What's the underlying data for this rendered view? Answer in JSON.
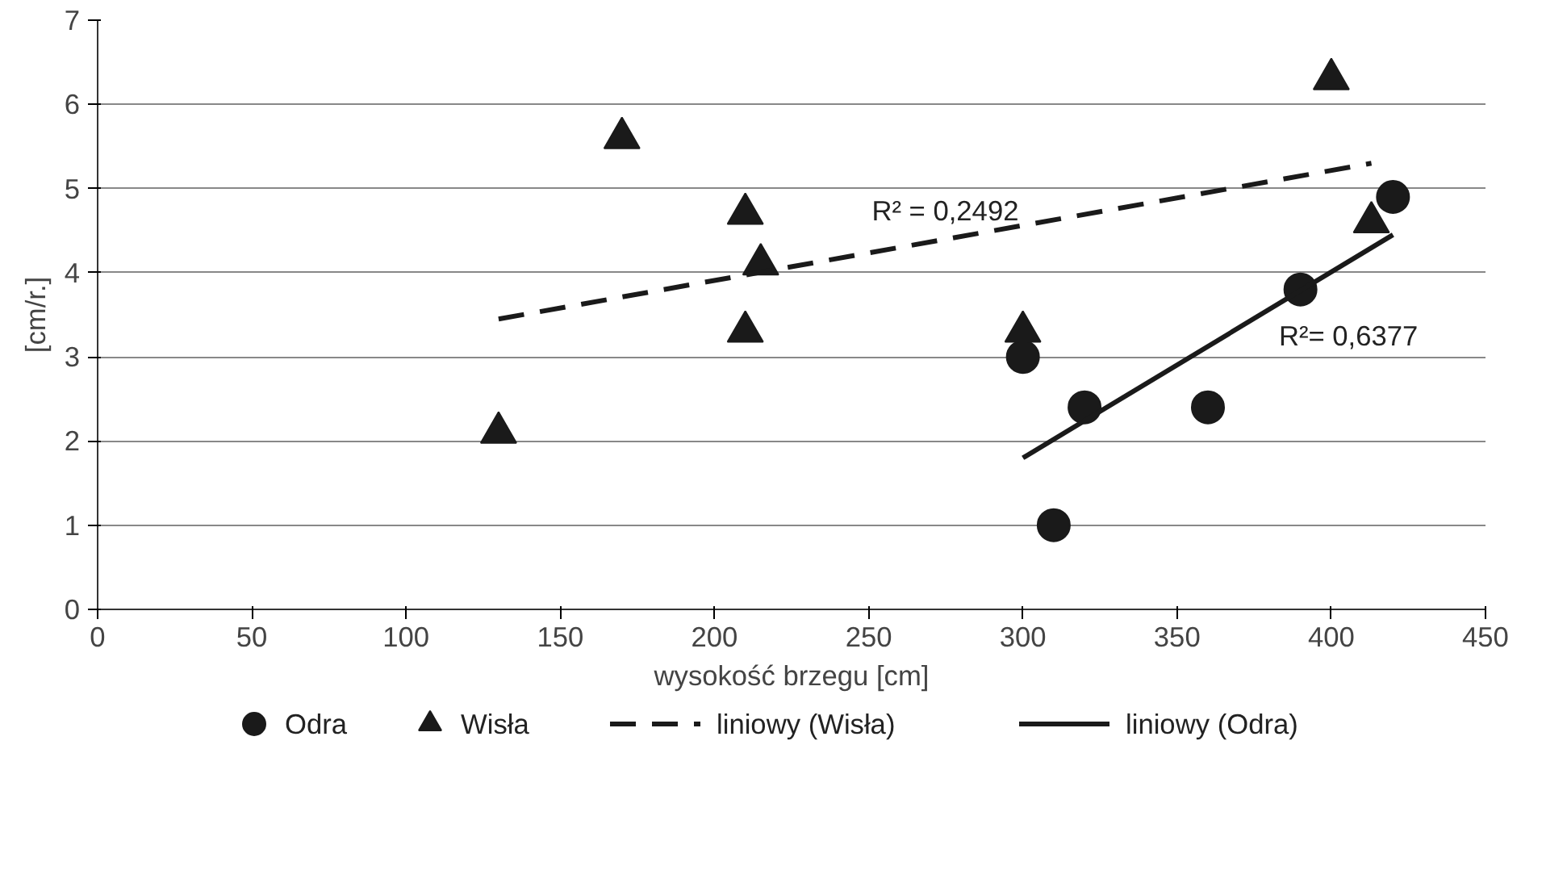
{
  "chart_data": {
    "type": "scatter",
    "xlabel": "wysokość brzegu [cm]",
    "ylabel": "[cm/r.]",
    "xlim": [
      0,
      450
    ],
    "xticks": [
      0,
      50,
      100,
      150,
      200,
      250,
      300,
      350,
      400,
      450
    ],
    "ylim": [
      0,
      7
    ],
    "yticks": [
      0,
      1,
      2,
      3,
      4,
      5,
      6,
      7
    ],
    "grid": "y",
    "legend": "bottom",
    "series": [
      {
        "name": "Odra",
        "color": "#1a1a1a",
        "marker": "circle",
        "x": [
          300,
          310,
          320,
          360,
          390,
          420
        ],
        "values": [
          3.0,
          1.0,
          2.4,
          2.4,
          3.8,
          4.9
        ]
      },
      {
        "name": "Wisła",
        "color": "#1a1a1a",
        "marker": "triangle",
        "x": [
          130,
          170,
          210,
          210,
          215,
          300,
          400,
          413
        ],
        "values": [
          2.1,
          5.6,
          4.7,
          3.3,
          4.1,
          3.3,
          6.3,
          4.6
        ]
      },
      {
        "name": "liniowy (Wisła)",
        "type": "line",
        "line_style": "dashed",
        "color": "#1a1a1a",
        "x": [
          130,
          413
        ],
        "values": [
          3.45,
          5.3
        ]
      },
      {
        "name": "liniowy (Odra)",
        "type": "line",
        "line_style": "solid",
        "color": "#1a1a1a",
        "x": [
          300,
          420
        ],
        "values": [
          1.8,
          4.45
        ]
      }
    ],
    "annotations": [
      {
        "text": "R² = 0,2492",
        "x": 251,
        "y": 4.24
      },
      {
        "text": "R²= 0,6377",
        "x": 383,
        "y": 3.63
      }
    ]
  }
}
